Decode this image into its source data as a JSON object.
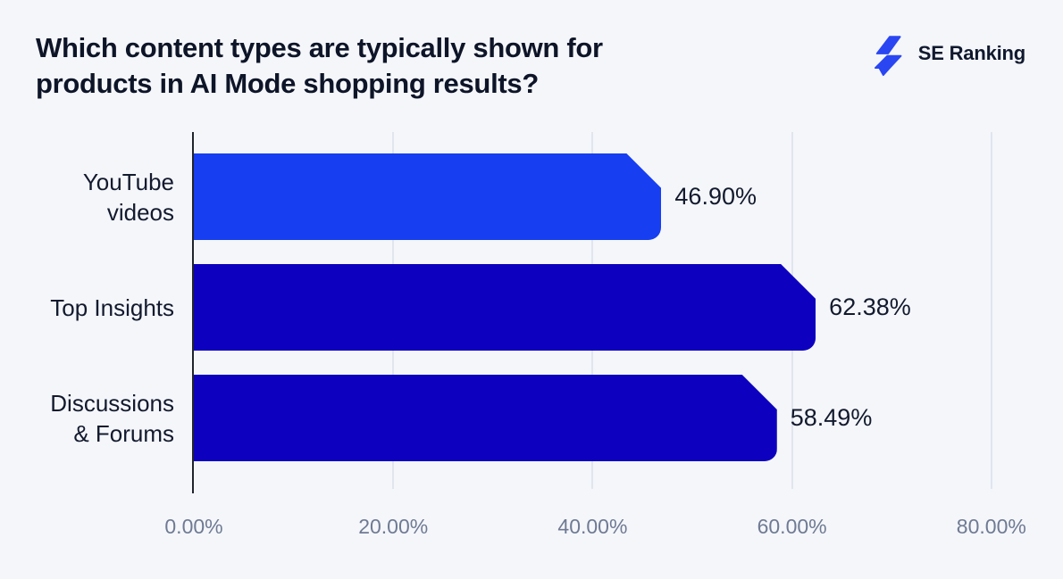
{
  "header": {
    "title_lines": [
      "Which content types are typically shown for",
      "products in AI Mode shopping results?"
    ],
    "brand": {
      "name": "SE Ranking"
    }
  },
  "colors": {
    "background": "#F4F6FA",
    "axis_line": "#20242E",
    "gridline": "#E0E5EF",
    "title_text": "#0E1528",
    "label_text": "#131A2E",
    "tick_text": "#6F7A93",
    "logo_blue": "#2A46F2"
  },
  "chart_data": {
    "type": "bar",
    "orientation": "horizontal",
    "title": "Which content types are typically shown for products in AI Mode shopping results?",
    "categories": [
      "YouTube\nvideos",
      "Top Insights",
      "Discussions\n& Forums"
    ],
    "values": [
      46.9,
      62.38,
      58.49
    ],
    "value_labels": [
      "46.90%",
      "62.38%",
      "58.49%"
    ],
    "bar_colors": [
      "#173EF0",
      "#0D00BE",
      "#0D00BE"
    ],
    "x_ticks": [
      {
        "value": 0,
        "label": "0.00%"
      },
      {
        "value": 20,
        "label": "20.00%"
      },
      {
        "value": 40,
        "label": "40.00%"
      },
      {
        "value": 60,
        "label": "60.00%"
      },
      {
        "value": 80,
        "label": "80.00%"
      }
    ],
    "xlim": [
      0,
      80
    ],
    "grid": "vertical-only",
    "legend": "none"
  }
}
